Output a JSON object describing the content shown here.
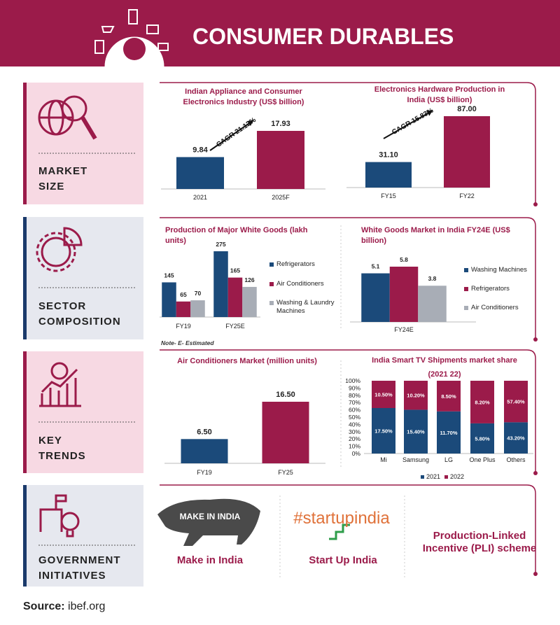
{
  "header": {
    "title": "CONSUMER DURABLES"
  },
  "sections": [
    {
      "label": "MARKET SIZE"
    },
    {
      "label": "SECTOR COMPOSITION"
    },
    {
      "label": "KEY TRENDS"
    },
    {
      "label": "GOVERNMENT INITIATIVES"
    }
  ],
  "chart_data": [
    {
      "type": "bar",
      "title": "Indian Appliance and Consumer Electronics Industry (US$ billion)",
      "categories": [
        "2021",
        "2025F"
      ],
      "values": [
        9.84,
        17.93
      ],
      "colors": [
        "#1b4a7a",
        "#9b1b4a"
      ],
      "annotation": "CAGR 21.12%"
    },
    {
      "type": "bar",
      "title": "Electronics Hardware Production in India (US$ billion)",
      "categories": [
        "FY15",
        "FY22"
      ],
      "values": [
        31.1,
        87
      ],
      "value_labels": [
        "31.10",
        "87.00"
      ],
      "colors": [
        "#1b4a7a",
        "#9b1b4a"
      ],
      "annotation": "CAGR 15.83%"
    },
    {
      "type": "grouped_bar",
      "title": "Production of Major White Goods (lakh units)",
      "categories": [
        "FY19",
        "FY25E"
      ],
      "series": [
        {
          "name": "Refrigerators",
          "color": "#1b4a7a",
          "values": [
            145,
            275
          ]
        },
        {
          "name": "Air Conditioners",
          "color": "#9b1b4a",
          "values": [
            65,
            165
          ]
        },
        {
          "name": "Washing & Laundry Machines",
          "color": "#a8adb6",
          "values": [
            70,
            126
          ]
        }
      ],
      "note": "Note- E- Estimated"
    },
    {
      "type": "grouped_bar",
      "title": "White Goods Market in India FY24E (US$ billion)",
      "categories": [
        "FY24E"
      ],
      "series": [
        {
          "name": "Washing Machines",
          "color": "#1b4a7a",
          "values": [
            5.1
          ]
        },
        {
          "name": "Refrigerators",
          "color": "#9b1b4a",
          "values": [
            5.8
          ]
        },
        {
          "name": "Air Conditioners",
          "color": "#a8adb6",
          "values": [
            3.8
          ]
        }
      ]
    },
    {
      "type": "bar",
      "title": "Air Conditioners Market (million units)",
      "categories": [
        "FY19",
        "FY25"
      ],
      "values": [
        6.5,
        16.5
      ],
      "value_labels": [
        "6.50",
        "16.50"
      ],
      "colors": [
        "#1b4a7a",
        "#9b1b4a"
      ]
    },
    {
      "type": "stacked_bar",
      "stacking": "percent",
      "title": "India Smart TV Shipments market share",
      "subtitle": "(2021 22)",
      "categories": [
        "Mi",
        "Samsung",
        "LG",
        "One Plus",
        "Others"
      ],
      "series": [
        {
          "name": "2021",
          "color": "#1b4a7a",
          "values": [
            17.5,
            15.4,
            11.7,
            5.8,
            43.2
          ],
          "value_labels": [
            "17.50%",
            "15.40%",
            "11.70%",
            "5.80%",
            "43.20%"
          ]
        },
        {
          "name": "2022",
          "color": "#9b1b4a",
          "values": [
            10.5,
            10.2,
            8.5,
            8.2,
            57.4
          ],
          "value_labels": [
            "10.50%",
            "10.20%",
            "8.50%",
            "8.20%",
            "57.40%"
          ]
        }
      ],
      "ylim": [
        0,
        100
      ],
      "yticks": [
        {
          "value": 0,
          "label": "0%"
        },
        {
          "value": 10,
          "label": "10%"
        },
        {
          "value": 20,
          "label": "20%"
        },
        {
          "value": 30,
          "label": "30%"
        },
        {
          "value": 40,
          "label": "40%"
        },
        {
          "value": 50,
          "label": "50%"
        },
        {
          "value": 60,
          "label": "60%"
        },
        {
          "value": 70,
          "label": "70%"
        },
        {
          "value": 80,
          "label": "80%"
        },
        {
          "value": 90,
          "label": "90%"
        },
        {
          "value": 100,
          "label": "100%"
        }
      ]
    }
  ],
  "initiatives": [
    {
      "logo_text": "MAKE IN INDIA",
      "label": "Make in India"
    },
    {
      "logo_text": "#startupindia",
      "label": "Start Up India"
    },
    {
      "label": "Production-Linked Incentive (PLI) scheme"
    }
  ],
  "source": {
    "label": "Source:",
    "text": "ibef.org"
  }
}
